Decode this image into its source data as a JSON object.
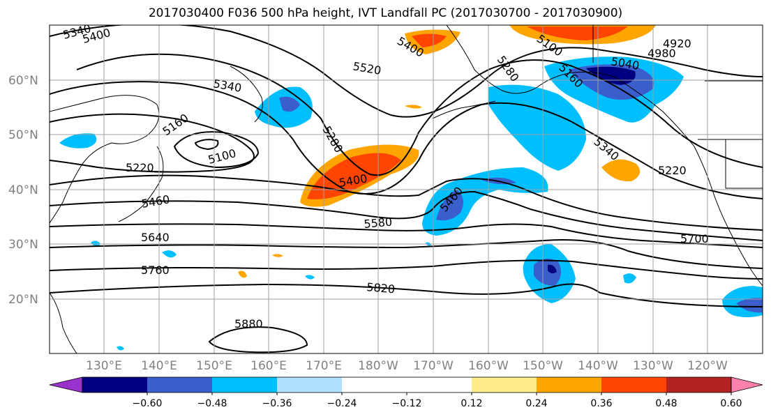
{
  "title": "2017030400 F036 500 hPa height, IVT Landfall PC (2017030700 - 2017030900)",
  "lat_labels": [
    "60°N",
    "50°N",
    "40°N",
    "30°N",
    "20°N"
  ],
  "lon_labels": [
    "130°E",
    "140°E",
    "150°E",
    "160°E",
    "170°E",
    "180°W",
    "170°W",
    "160°W",
    "150°W",
    "140°W",
    "130°W",
    "120°W"
  ],
  "contour_labels": [
    "5340",
    "5400",
    "5400",
    "4920",
    "4980",
    "5040",
    "5100",
    "5160",
    "5280",
    "5520",
    "5340",
    "5160",
    "5100",
    "5280",
    "5220",
    "5400",
    "5220",
    "5340",
    "5460",
    "5460",
    "5580",
    "5640",
    "5700",
    "5760",
    "5820",
    "5880"
  ],
  "colorbar": {
    "colors": [
      "#9933cc",
      "#000080",
      "#3a5fcd",
      "#00bfff",
      "#b0e2ff",
      "#ffffff",
      "#ffffff",
      "#ffec8b",
      "#ffa500",
      "#ff4500",
      "#b22222",
      "#ff82ab"
    ],
    "ticks": [
      "−0.60",
      "−0.48",
      "−0.36",
      "−0.24",
      "−0.12",
      "0.12",
      "0.24",
      "0.36",
      "0.48",
      "0.60"
    ]
  },
  "legend": {
    "height_field": "500 hPa height",
    "shaded_field": "IVT Landfall PC"
  }
}
